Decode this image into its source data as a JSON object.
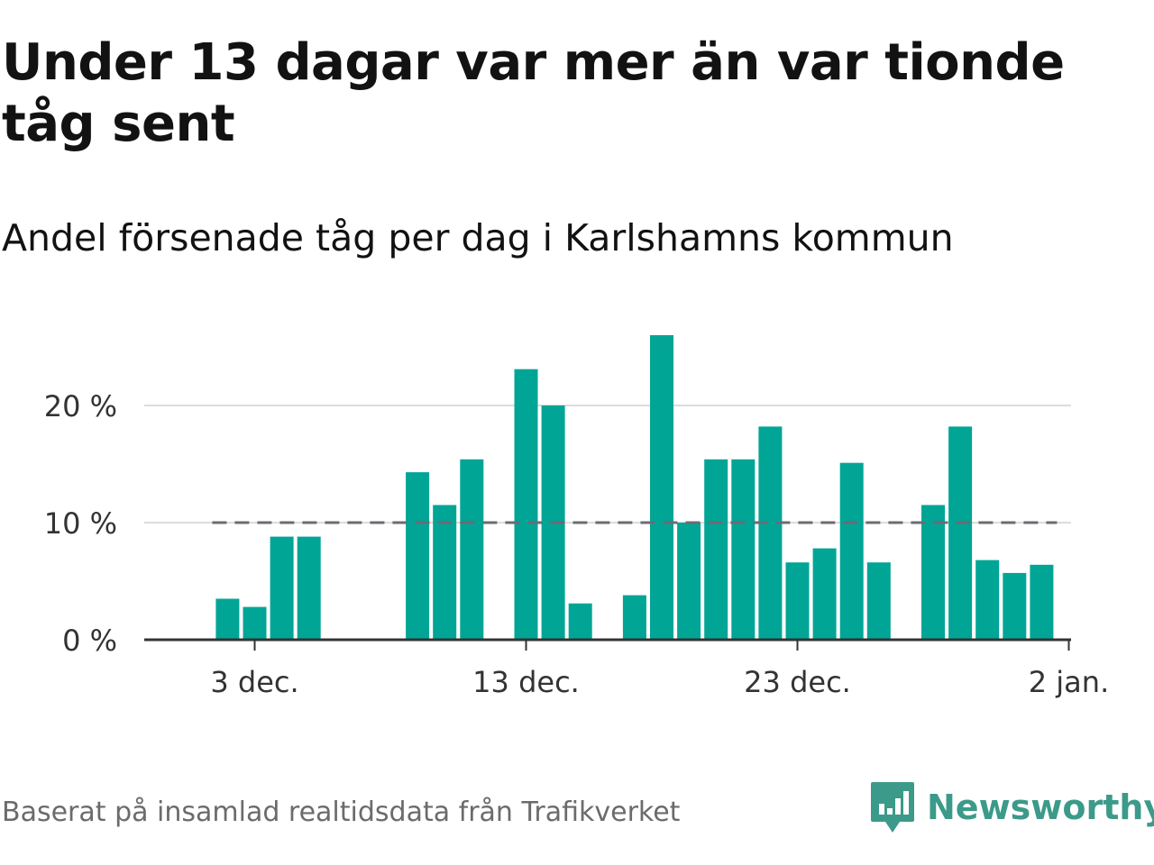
{
  "title": "Under 13 dagar var mer än var tionde tåg sent",
  "subtitle": "Andel försenade tåg per dag i Karlshamns kommun",
  "source": "Baserat på insamlad realtidsdata från Trafikverket",
  "brand": {
    "name": "Newsworthy",
    "icon": "newsworthy-logo-icon",
    "color": "#3c9a8a"
  },
  "chart_data": {
    "type": "bar",
    "bar_color": "#00a596",
    "reference_line": {
      "value": 10,
      "style": "dashed",
      "color": "#6b6b74"
    },
    "x_start": "2023-11-30",
    "x_end": "2024-01-02",
    "xticks": [
      {
        "date": "2023-12-03",
        "label": "3 dec."
      },
      {
        "date": "2023-12-13",
        "label": "13 dec."
      },
      {
        "date": "2023-12-23",
        "label": "23 dec."
      },
      {
        "date": "2024-01-02",
        "label": "2 jan."
      }
    ],
    "ylim": [
      0,
      30
    ],
    "yticks": [
      {
        "value": 0,
        "label": "0 %"
      },
      {
        "value": 10,
        "label": "10 %"
      },
      {
        "value": 20,
        "label": "20 %"
      }
    ],
    "grid": true,
    "xlabel": "",
    "ylabel": "",
    "bars": [
      {
        "date": "2023-12-02",
        "value": 3.5
      },
      {
        "date": "2023-12-03",
        "value": 2.8
      },
      {
        "date": "2023-12-04",
        "value": 8.8
      },
      {
        "date": "2023-12-05",
        "value": 8.8
      },
      {
        "date": "2023-12-09",
        "value": 14.3
      },
      {
        "date": "2023-12-10",
        "value": 11.5
      },
      {
        "date": "2023-12-11",
        "value": 15.4
      },
      {
        "date": "2023-12-13",
        "value": 23.1
      },
      {
        "date": "2023-12-14",
        "value": 20.0
      },
      {
        "date": "2023-12-15",
        "value": 3.1
      },
      {
        "date": "2023-12-17",
        "value": 3.8
      },
      {
        "date": "2023-12-18",
        "value": 26.0
      },
      {
        "date": "2023-12-19",
        "value": 10.0
      },
      {
        "date": "2023-12-20",
        "value": 15.4
      },
      {
        "date": "2023-12-21",
        "value": 15.4
      },
      {
        "date": "2023-12-22",
        "value": 18.2
      },
      {
        "date": "2023-12-23",
        "value": 6.6
      },
      {
        "date": "2023-12-24",
        "value": 7.8
      },
      {
        "date": "2023-12-25",
        "value": 15.1
      },
      {
        "date": "2023-12-26",
        "value": 6.6
      },
      {
        "date": "2023-12-28",
        "value": 11.5
      },
      {
        "date": "2023-12-29",
        "value": 18.2
      },
      {
        "date": "2023-12-30",
        "value": 6.8
      },
      {
        "date": "2023-12-31",
        "value": 5.7
      },
      {
        "date": "2024-01-01",
        "value": 6.4
      }
    ]
  }
}
